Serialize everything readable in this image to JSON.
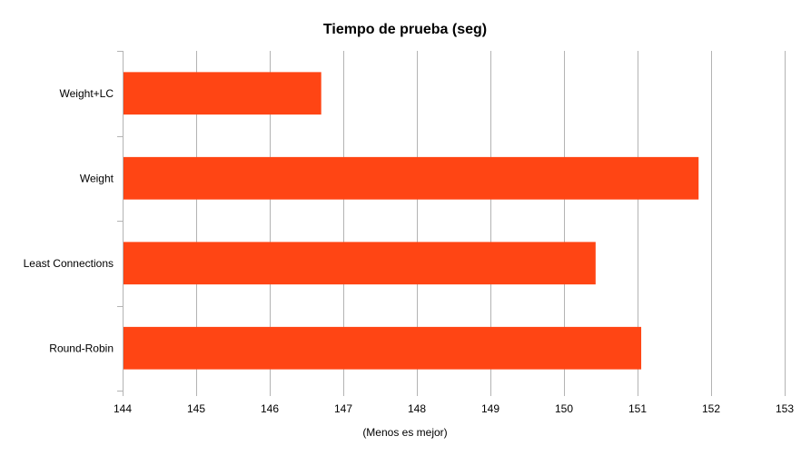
{
  "chart_data": {
    "type": "bar",
    "orientation": "horizontal",
    "title": "Tiempo de prueba (seg)",
    "xlabel": "(Menos es mejor)",
    "ylabel": "",
    "categories": [
      "Weight+LC",
      "Weight",
      "Least Connections",
      "Round-Robin"
    ],
    "values": [
      146.7,
      151.83,
      150.43,
      151.05
    ],
    "xlim": [
      144,
      153
    ],
    "xticks": [
      144,
      145,
      146,
      147,
      148,
      149,
      150,
      151,
      152,
      153
    ],
    "grid": "vertical",
    "bar_color": "#ff4514"
  }
}
